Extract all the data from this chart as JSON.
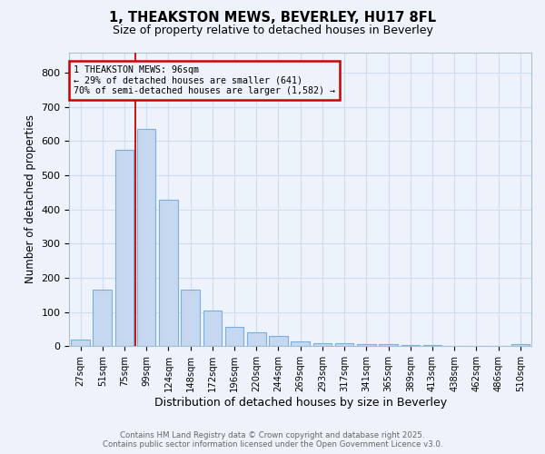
{
  "title": "1, THEAKSTON MEWS, BEVERLEY, HU17 8FL",
  "subtitle": "Size of property relative to detached houses in Beverley",
  "xlabel": "Distribution of detached houses by size in Beverley",
  "ylabel": "Number of detached properties",
  "bar_labels": [
    "27sqm",
    "51sqm",
    "75sqm",
    "99sqm",
    "124sqm",
    "148sqm",
    "172sqm",
    "196sqm",
    "220sqm",
    "244sqm",
    "269sqm",
    "293sqm",
    "317sqm",
    "341sqm",
    "365sqm",
    "389sqm",
    "413sqm",
    "438sqm",
    "462sqm",
    "486sqm",
    "510sqm"
  ],
  "bar_values": [
    20,
    165,
    575,
    635,
    428,
    165,
    105,
    57,
    42,
    30,
    15,
    10,
    8,
    6,
    5,
    3,
    3,
    2,
    1,
    1,
    5
  ],
  "bar_color": "#c5d8f0",
  "bar_edge_color": "#7aaedc",
  "grid_color": "#ccddf0",
  "bg_color": "#eef2fb",
  "red_line_x": 2.5,
  "annotation_text": "1 THEAKSTON MEWS: 96sqm\n← 29% of detached houses are smaller (641)\n70% of semi-detached houses are larger (1,582) →",
  "annotation_box_color": "#cc0000",
  "footer_line1": "Contains HM Land Registry data © Crown copyright and database right 2025.",
  "footer_line2": "Contains public sector information licensed under the Open Government Licence v3.0.",
  "ylim": [
    0,
    860
  ],
  "yticks": [
    0,
    100,
    200,
    300,
    400,
    500,
    600,
    700,
    800
  ]
}
